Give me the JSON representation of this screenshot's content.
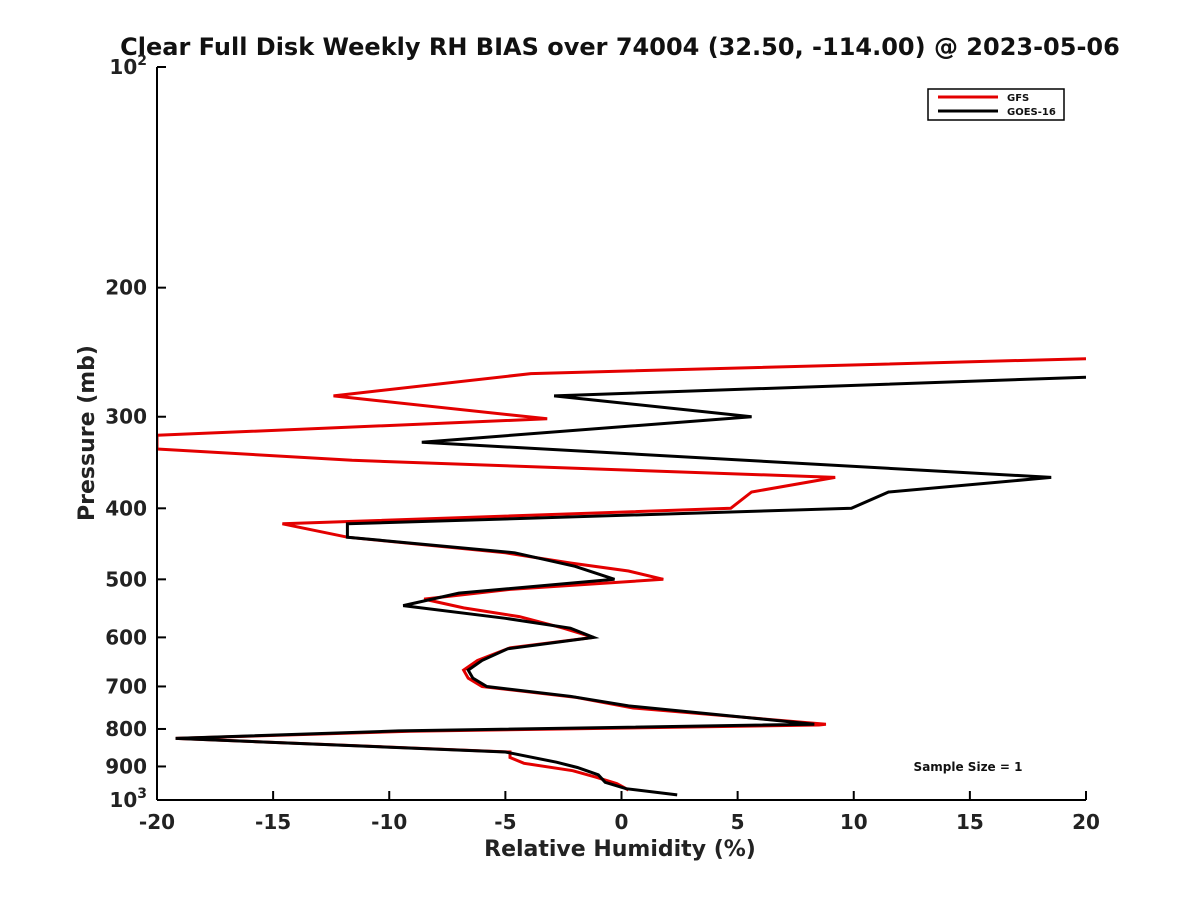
{
  "chart_data": {
    "type": "line",
    "title": "Clear Full Disk Weekly RH BIAS over 74004 (32.50, -114.00) @ 2023-05-06",
    "xlabel": "Relative Humidity (%)",
    "ylabel": "Pressure (mb)",
    "xlim": [
      -20,
      20
    ],
    "ylim": [
      100,
      1000
    ],
    "yscale": "log",
    "yreversed": true,
    "x_ticks": [
      -20,
      -15,
      -10,
      -5,
      0,
      5,
      10,
      15,
      20
    ],
    "x_tick_labels": [
      "-20",
      "-15",
      "-10",
      "-5",
      "0",
      "5",
      "10",
      "15",
      "20"
    ],
    "y_ticks": [
      100,
      200,
      300,
      400,
      500,
      600,
      700,
      800,
      900,
      1000
    ],
    "y_tick_labels": [
      {
        "base": "10",
        "exp": "2"
      },
      {
        "base": "200",
        "exp": ""
      },
      {
        "base": "300",
        "exp": ""
      },
      {
        "base": "400",
        "exp": ""
      },
      {
        "base": "500",
        "exp": ""
      },
      {
        "base": "600",
        "exp": ""
      },
      {
        "base": "700",
        "exp": ""
      },
      {
        "base": "800",
        "exp": ""
      },
      {
        "base": "900",
        "exp": ""
      },
      {
        "base": "10",
        "exp": "3"
      }
    ],
    "legend_position": "top-right",
    "series": [
      {
        "name": "GFS",
        "color": "#e30000",
        "points": [
          [
            20,
            250
          ],
          [
            -3.9,
            262
          ],
          [
            -12.4,
            281
          ],
          [
            -3.2,
            302
          ],
          [
            -20,
            318
          ],
          [
            -20,
            332
          ],
          [
            -11.6,
            344
          ],
          [
            9.2,
            363
          ],
          [
            5.6,
            380
          ],
          [
            4.7,
            400
          ],
          [
            -14.6,
            420
          ],
          [
            -11.8,
            438
          ],
          [
            -5.0,
            460
          ],
          [
            -2.2,
            475
          ],
          [
            0.3,
            487
          ],
          [
            1.8,
            500
          ],
          [
            -4.8,
            516
          ],
          [
            -8.5,
            532
          ],
          [
            -6.8,
            547
          ],
          [
            -4.4,
            562
          ],
          [
            -2.5,
            583
          ],
          [
            -1.2,
            600
          ],
          [
            -4.8,
            620
          ],
          [
            -6.2,
            645
          ],
          [
            -6.8,
            665
          ],
          [
            -6.6,
            682
          ],
          [
            -6.0,
            700
          ],
          [
            -2.0,
            724
          ],
          [
            0.5,
            749
          ],
          [
            8.8,
            788
          ],
          [
            8.5,
            790
          ],
          [
            -9.1,
            806
          ],
          [
            -19.2,
            824
          ],
          [
            -4.8,
            860
          ],
          [
            -4.8,
            875
          ],
          [
            -4.2,
            891
          ],
          [
            -2.1,
            912
          ],
          [
            -1.1,
            931
          ],
          [
            -0.2,
            950
          ],
          [
            0.3,
            969
          ]
        ]
      },
      {
        "name": "GOES-16",
        "color": "#000000",
        "points": [
          [
            20,
            265
          ],
          [
            -2.9,
            281
          ],
          [
            5.6,
            300
          ],
          [
            -8.6,
            325
          ],
          [
            18.5,
            363
          ],
          [
            11.5,
            380
          ],
          [
            9.9,
            400
          ],
          [
            -11.8,
            420
          ],
          [
            -11.8,
            438
          ],
          [
            -4.6,
            460
          ],
          [
            -2.0,
            480
          ],
          [
            -0.3,
            500
          ],
          [
            -7.0,
            522
          ],
          [
            -9.4,
            543
          ],
          [
            -5.0,
            565
          ],
          [
            -2.2,
            583
          ],
          [
            -1.2,
            600
          ],
          [
            -4.9,
            622
          ],
          [
            -6.0,
            645
          ],
          [
            -6.6,
            665
          ],
          [
            -6.4,
            682
          ],
          [
            -5.8,
            700
          ],
          [
            -2.2,
            722
          ],
          [
            0.3,
            744
          ],
          [
            8.3,
            788
          ],
          [
            -9.6,
            805
          ],
          [
            -19.2,
            824
          ],
          [
            -5.0,
            860
          ],
          [
            -2.8,
            888
          ],
          [
            -1.9,
            903
          ],
          [
            -1.0,
            924
          ],
          [
            -0.7,
            946
          ],
          [
            0.2,
            965
          ],
          [
            2.4,
            984
          ]
        ]
      }
    ],
    "annotations": [
      "Sample Size = 1"
    ]
  }
}
